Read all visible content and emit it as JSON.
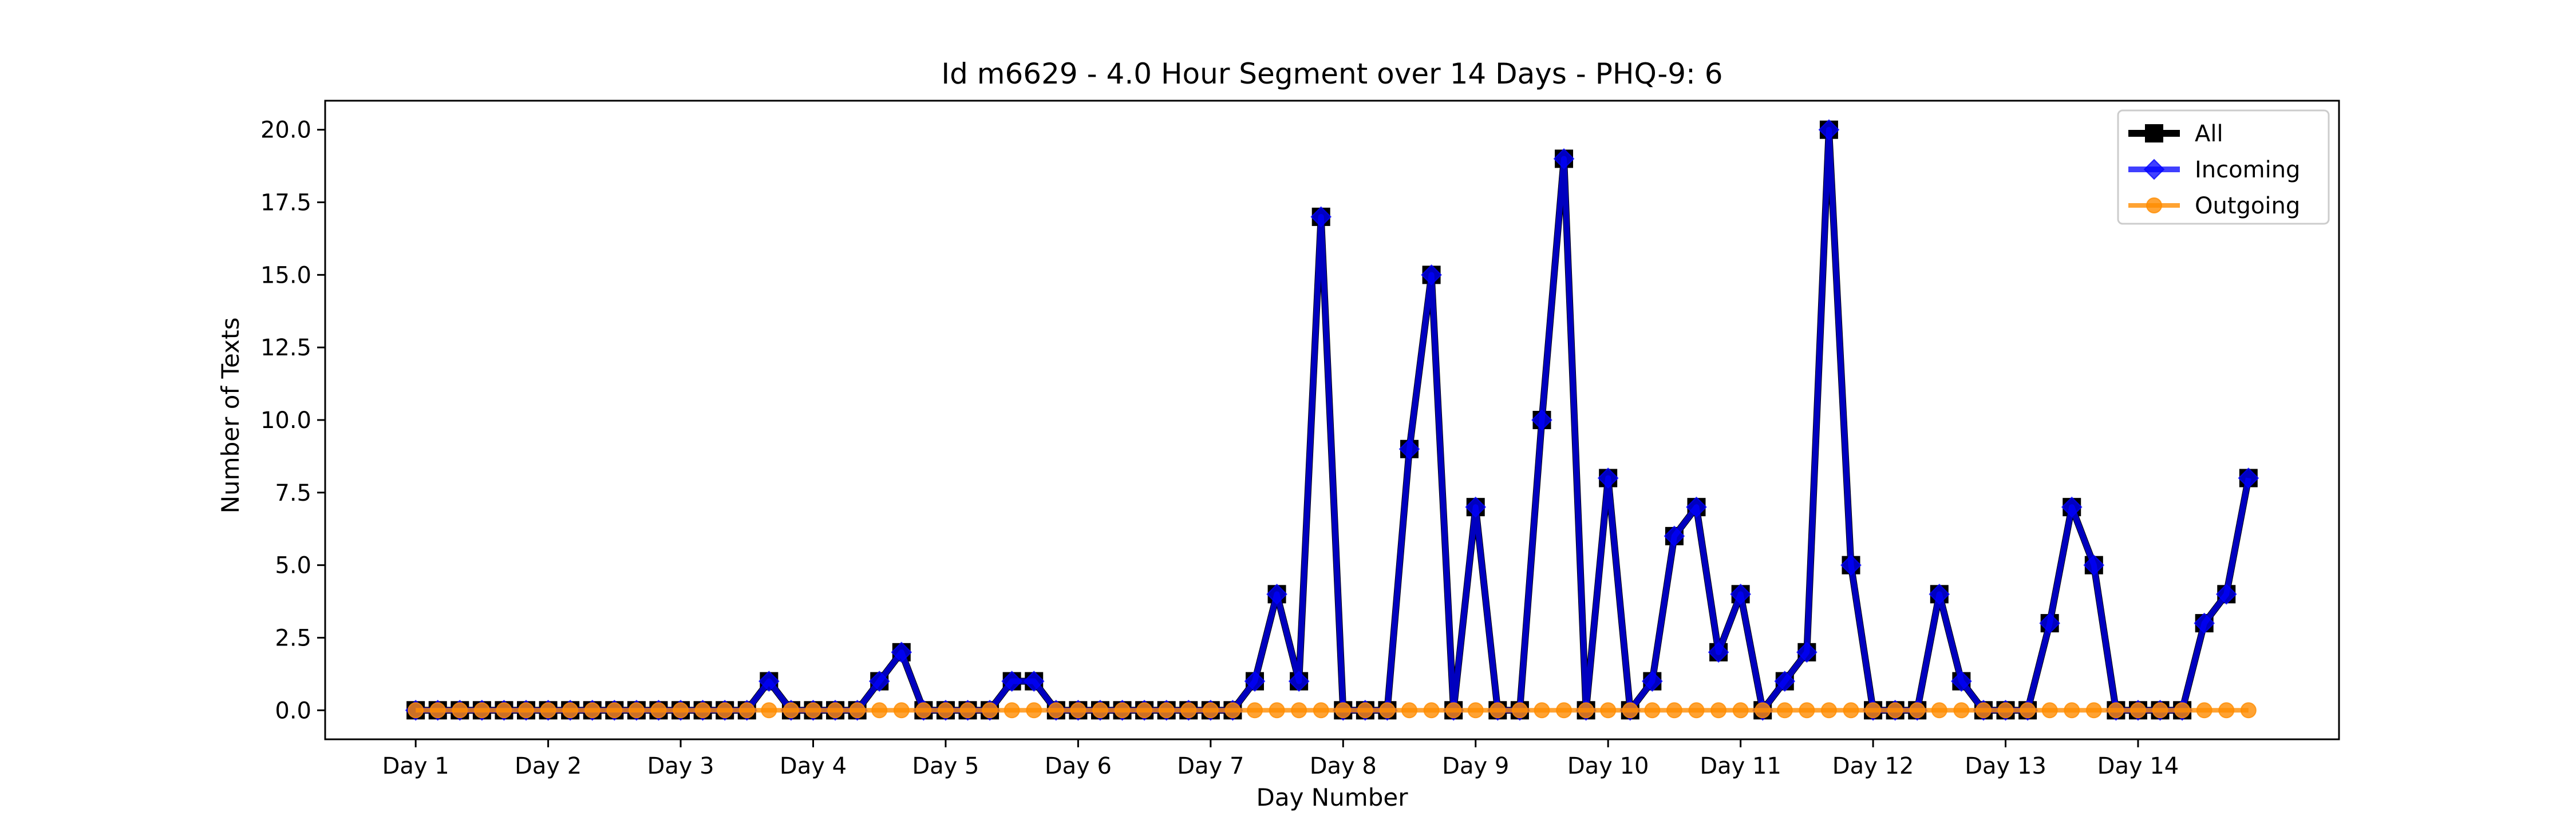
{
  "chart_data": {
    "type": "line",
    "title": "Id m6629 - 4.0 Hour Segment over 14 Days - PHQ-9: 6",
    "xlabel": "Day Number",
    "ylabel": "Number of Texts",
    "ylim": [
      -1.0,
      21.0
    ],
    "yticks": [
      0.0,
      2.5,
      5.0,
      7.5,
      10.0,
      12.5,
      15.0,
      17.5,
      20.0
    ],
    "ytick_labels": [
      "0.0",
      "2.5",
      "5.0",
      "7.5",
      "10.0",
      "12.5",
      "15.0",
      "17.5",
      "20.0"
    ],
    "xticks": [
      0,
      6,
      12,
      18,
      24,
      30,
      36,
      42,
      48,
      54,
      60,
      66,
      72,
      78
    ],
    "xtick_labels": [
      "Day 1",
      "Day 2",
      "Day 3",
      "Day 4",
      "Day 5",
      "Day 6",
      "Day 7",
      "Day 8",
      "Day 9",
      "Day 10",
      "Day 11",
      "Day 12",
      "Day 13",
      "Day 14"
    ],
    "xlim": [
      -4.1,
      87.1
    ],
    "grid": false,
    "legend_position": "top-right",
    "series": [
      {
        "name": "All",
        "color": "#000000",
        "marker": "square",
        "values": [
          0,
          0,
          0,
          0,
          0,
          0,
          0,
          0,
          0,
          0,
          0,
          0,
          0,
          0,
          0,
          0,
          1,
          0,
          0,
          0,
          0,
          1,
          2,
          0,
          0,
          0,
          0,
          1,
          1,
          0,
          0,
          0,
          0,
          0,
          0,
          0,
          0,
          0,
          1,
          4,
          1,
          17,
          0,
          0,
          0,
          9,
          15,
          0,
          7,
          0,
          0,
          10,
          19,
          0,
          8,
          0,
          1,
          6,
          7,
          2,
          4,
          0,
          1,
          2,
          20,
          5,
          0,
          0,
          0,
          4,
          1,
          0,
          0,
          0,
          3,
          7,
          5,
          0,
          0,
          0,
          0,
          3,
          4,
          8
        ]
      },
      {
        "name": "Incoming",
        "color": "#0000ff",
        "marker": "diamond",
        "values": [
          0,
          0,
          0,
          0,
          0,
          0,
          0,
          0,
          0,
          0,
          0,
          0,
          0,
          0,
          0,
          0,
          1,
          0,
          0,
          0,
          0,
          1,
          2,
          0,
          0,
          0,
          0,
          1,
          1,
          0,
          0,
          0,
          0,
          0,
          0,
          0,
          0,
          0,
          1,
          4,
          1,
          17,
          0,
          0,
          0,
          9,
          15,
          0,
          7,
          0,
          0,
          10,
          19,
          0,
          8,
          0,
          1,
          6,
          7,
          2,
          4,
          0,
          1,
          2,
          20,
          5,
          0,
          0,
          0,
          4,
          1,
          0,
          0,
          0,
          3,
          7,
          5,
          0,
          0,
          0,
          0,
          3,
          4,
          8
        ]
      },
      {
        "name": "Outgoing",
        "color": "#ff8c00",
        "marker": "circle",
        "values": [
          0,
          0,
          0,
          0,
          0,
          0,
          0,
          0,
          0,
          0,
          0,
          0,
          0,
          0,
          0,
          0,
          0,
          0,
          0,
          0,
          0,
          0,
          0,
          0,
          0,
          0,
          0,
          0,
          0,
          0,
          0,
          0,
          0,
          0,
          0,
          0,
          0,
          0,
          0,
          0,
          0,
          0,
          0,
          0,
          0,
          0,
          0,
          0,
          0,
          0,
          0,
          0,
          0,
          0,
          0,
          0,
          0,
          0,
          0,
          0,
          0,
          0,
          0,
          0,
          0,
          0,
          0,
          0,
          0,
          0,
          0,
          0,
          0,
          0,
          0,
          0,
          0,
          0,
          0,
          0,
          0,
          0,
          0,
          0
        ]
      }
    ]
  }
}
